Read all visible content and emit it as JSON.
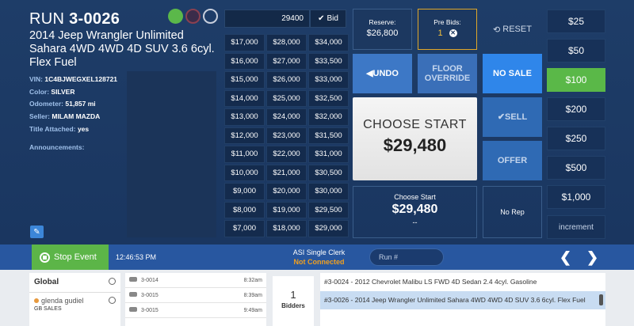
{
  "run": {
    "prefix": "RUN",
    "number": "3-0026"
  },
  "vehicle": {
    "title": "2014 Jeep Wrangler Unlimited Sahara 4WD 4WD 4D SUV 3.6 6cyl. Flex Fuel",
    "specs": [
      {
        "label": "VIN:",
        "value": "1C4BJWEGXEL128721"
      },
      {
        "label": "Color:",
        "value": "SILVER"
      },
      {
        "label": "Odometer:",
        "value": "51,857 mi"
      },
      {
        "label": "Seller:",
        "value": "MILAM MAZDA"
      },
      {
        "label": "Title Attached:",
        "value": "yes"
      }
    ],
    "announcements_label": "Announcements:"
  },
  "status_dots": [
    "green",
    "red",
    "blank"
  ],
  "bid_input": {
    "value": "29400",
    "button": "Bid"
  },
  "price_grid": [
    [
      "$17,000",
      "$28,000",
      "$34,000"
    ],
    [
      "$16,000",
      "$27,000",
      "$33,500"
    ],
    [
      "$15,000",
      "$26,000",
      "$33,000"
    ],
    [
      "$14,000",
      "$25,000",
      "$32,500"
    ],
    [
      "$13,000",
      "$24,000",
      "$32,000"
    ],
    [
      "$12,000",
      "$23,000",
      "$31,500"
    ],
    [
      "$11,000",
      "$22,000",
      "$31,000"
    ],
    [
      "$10,000",
      "$21,000",
      "$30,500"
    ],
    [
      "$9,000",
      "$20,000",
      "$30,000"
    ],
    [
      "$8,000",
      "$19,000",
      "$29,500"
    ],
    [
      "$7,000",
      "$18,000",
      "$29,000"
    ]
  ],
  "reserve": {
    "label": "Reserve:",
    "value": "$26,800"
  },
  "prebids": {
    "label": "Pre Bids:",
    "value": "1"
  },
  "buttons": {
    "reset": "RESET",
    "undo": "UNDO",
    "floor_override": "FLOOR OVERRIDE",
    "no_sale": "NO SALE",
    "sell": "SELL",
    "offer": "OFFER"
  },
  "choose_start": {
    "title": "CHOOSE START",
    "price": "$29,480"
  },
  "choose_start_small": {
    "title": "Choose Start",
    "price": "$29,480",
    "dash": "--"
  },
  "no_rep": "No Rep",
  "increments": [
    "$25",
    "$50",
    "$100",
    "$200",
    "$250",
    "$500",
    "$1,000"
  ],
  "increments_active": "$100",
  "increment_label": "increment",
  "status_bar": {
    "stop_event": "Stop Event",
    "time": "12:46:53 PM",
    "clerk": "ASI Single Clerk",
    "connection": "Not Connected",
    "run_placeholder": "Run #"
  },
  "global_panel": {
    "title": "Global",
    "user": "glenda gudiel",
    "user_sub": "GB SALES"
  },
  "run_list": [
    {
      "run": "3-0014",
      "time": "8:32am"
    },
    {
      "run": "3-0015",
      "time": "8:39am"
    },
    {
      "run": "3-0015",
      "time": "9:49am"
    }
  ],
  "bidders": {
    "count": "1",
    "label": "Bidders"
  },
  "vehicle_list": [
    {
      "text": "#3-0024 - 2012 Chevrolet Malibu LS FWD 4D Sedan 2.4 4cyl. Gasoline",
      "selected": false
    },
    {
      "text": "#3-0026 - 2014 Jeep Wrangler Unlimited Sahara 4WD 4WD 4D SUV 3.6 6cyl. Flex Fuel",
      "selected": true
    }
  ],
  "colors": {
    "active_green": "#5ab848",
    "accent_blue": "#2f86ea",
    "warning": "#f0a020"
  }
}
